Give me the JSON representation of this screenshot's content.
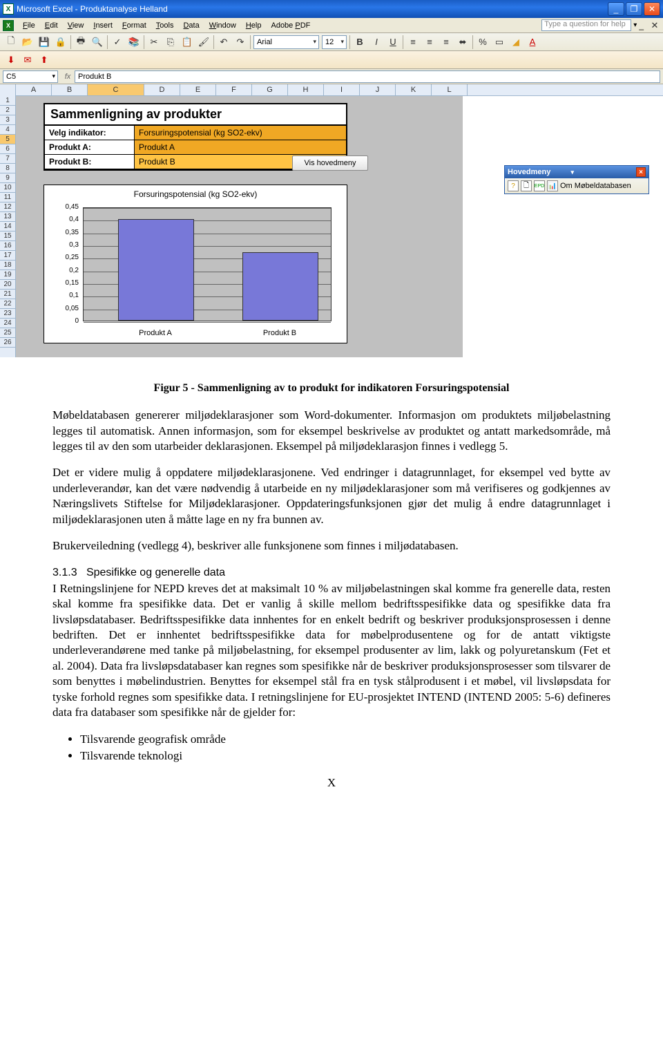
{
  "window": {
    "title": "Microsoft Excel - Produktanalyse Helland",
    "ask_placeholder": "Type a question for help"
  },
  "menu": [
    "File",
    "Edit",
    "View",
    "Insert",
    "Format",
    "Tools",
    "Data",
    "Window",
    "Help",
    "Adobe PDF"
  ],
  "toolbar": {
    "font": "Arial",
    "size": "12"
  },
  "formula": {
    "namebox": "C5",
    "value": "Produkt B"
  },
  "columns": [
    "A",
    "B",
    "C",
    "D",
    "E",
    "F",
    "G",
    "H",
    "I",
    "J",
    "K",
    "L"
  ],
  "row_count": 26,
  "panel": {
    "title": "Sammenligning av produkter",
    "indicator_label": "Velg indikator:",
    "indicator_value": "Forsuringspotensial (kg SO2-ekv)",
    "a_label": "Produkt A:",
    "a_value": "Produkt A",
    "b_label": "Produkt B:",
    "b_value": "Produkt B",
    "vis_btn": "Vis hovedmeny"
  },
  "chart": {
    "type": "bar",
    "title": "Forsuringspotensial (kg SO2-ekv)",
    "categories": [
      "Produkt A",
      "Produkt B"
    ],
    "values": [
      0.4,
      0.27
    ],
    "ylim": [
      0,
      0.45
    ],
    "ytick_step": 0.05,
    "ytick_labels": [
      "0",
      "0,05",
      "0,1",
      "0,15",
      "0,2",
      "0,25",
      "0,3",
      "0,35",
      "0,4",
      "0,45"
    ],
    "bar_color": "#7878d8",
    "background_color": "#ffffff",
    "plot_background": "#c0c0c0",
    "grid_color": "#666666"
  },
  "hoved_toolbar": {
    "title": "Hovedmeny",
    "label": "Om Møbeldatabasen"
  },
  "doc": {
    "figcap": "Figur 5 - Sammenligning av to produkt for indikatoren Forsuringspotensial",
    "p1": "Møbeldatabasen genererer miljødeklarasjoner som Word-dokumenter. Informasjon om produktets miljøbelastning legges til automatisk. Annen informasjon, som for eksempel beskrivelse av produktet og antatt markedsområde, må legges til av den som utarbeider deklarasjonen. Eksempel på miljødeklarasjon finnes i vedlegg 5.",
    "p2": "Det er videre mulig å oppdatere miljødeklarasjonene. Ved endringer i datagrunnlaget, for eksempel ved bytte av underleverandør, kan det være nødvendig å utarbeide en ny miljødeklarasjoner som må verifiseres og godkjennes av Næringslivets Stiftelse for Miljødeklarasjoner. Oppdateringsfunksjonen gjør det mulig å endre datagrunnlaget i miljødeklarasjonen uten å måtte lage en ny fra bunnen av.",
    "p3": "Brukerveiledning (vedlegg 4), beskriver alle funksjonene som finnes i miljødatabasen.",
    "sec_num": "3.1.3",
    "sec_title": "Spesifikke og generelle data",
    "p4": "I Retningslinjene for NEPD kreves det at maksimalt 10 % av miljøbelastningen skal komme fra generelle data, resten skal komme fra spesifikke data. Det er vanlig å skille mellom bedriftsspesifikke data og spesifikke data fra livsløpsdatabaser. Bedriftsspesifikke data innhentes for en enkelt bedrift og beskriver produksjonsprosessen i denne bedriften. Det er innhentet bedriftsspesifikke data for møbelprodusentene og for de antatt viktigste underleverandørene med tanke på miljøbelastning, for eksempel produsenter av lim, lakk og polyuretanskum (Fet et al. 2004). Data fra livsløpsdatabaser kan regnes som spesifikke når de beskriver produksjonsprosesser som tilsvarer de som benyttes i møbelindustrien. Benyttes for eksempel stål fra en tysk stålprodusent i et møbel, vil livsløpsdata for tyske forhold regnes som spesifikke data. I retningslinjene for EU-prosjektet INTEND (INTEND 2005: 5-6) defineres data fra databaser som spesifikke når de gjelder for:",
    "li1": "Tilsvarende geografisk område",
    "li2": "Tilsvarende teknologi",
    "pagenum": "X"
  }
}
